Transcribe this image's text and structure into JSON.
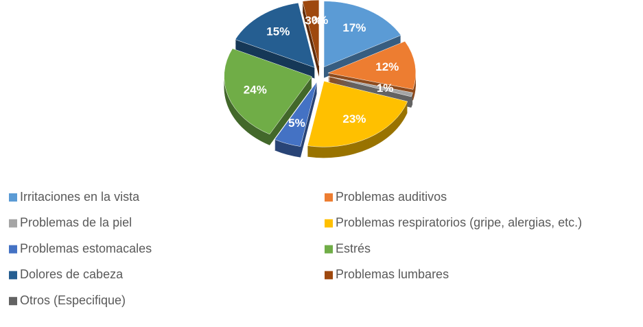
{
  "chart_data": {
    "type": "pie",
    "categories": [
      "Irritaciones en la vista",
      "Problemas auditivos",
      "Problemas de la piel",
      "Problemas respiratorios (gripe, alergias, etc.)",
      "Problemas estomacales",
      "Estrés",
      "Dolores de cabeza",
      "Problemas lumbares",
      "Otros (Especifique)"
    ],
    "values": [
      17,
      12,
      1,
      23,
      5,
      24,
      15,
      3,
      0
    ],
    "value_labels": [
      "17%",
      "12%",
      "1%",
      "23%",
      "5%",
      "24%",
      "15%",
      "3%",
      "0%"
    ],
    "colors": [
      "#5b9bd5",
      "#ed7d31",
      "#a5a5a5",
      "#ffc000",
      "#4472c4",
      "#70ad47",
      "#255e91",
      "#9e480e",
      "#636363"
    ],
    "legend": "bottom"
  }
}
